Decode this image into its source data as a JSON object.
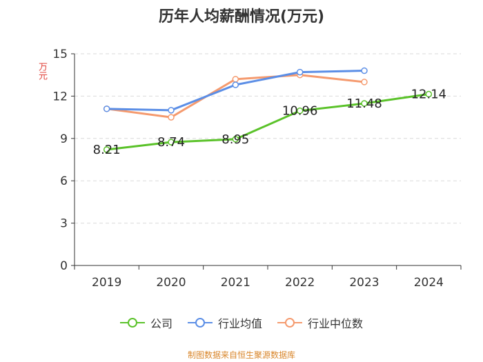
{
  "chart_data": {
    "type": "line",
    "title": "历年人均薪酬情况(万元)",
    "ylabel": "万元",
    "categories": [
      "2019",
      "2020",
      "2021",
      "2022",
      "2023",
      "2024"
    ],
    "ylim": [
      0,
      15
    ],
    "yticks": [
      0,
      3,
      6,
      9,
      12,
      15
    ],
    "grid": true,
    "legend_position": "bottom",
    "series": [
      {
        "name": "公司",
        "color": "#5ac229",
        "values": [
          8.21,
          8.74,
          8.95,
          10.96,
          11.48,
          12.14
        ],
        "labels": [
          "8.21",
          "8.74",
          "8.95",
          "10.96",
          "11.48",
          "12.14"
        ]
      },
      {
        "name": "行业均值",
        "color": "#5b8ee6",
        "values": [
          11.1,
          11.0,
          12.8,
          13.7,
          13.8,
          null
        ]
      },
      {
        "name": "行业中位数",
        "color": "#f59a6e",
        "values": [
          11.1,
          10.5,
          13.2,
          13.5,
          13.0,
          null
        ]
      }
    ]
  },
  "source_note": "制图数据来自恒生聚源数据库"
}
